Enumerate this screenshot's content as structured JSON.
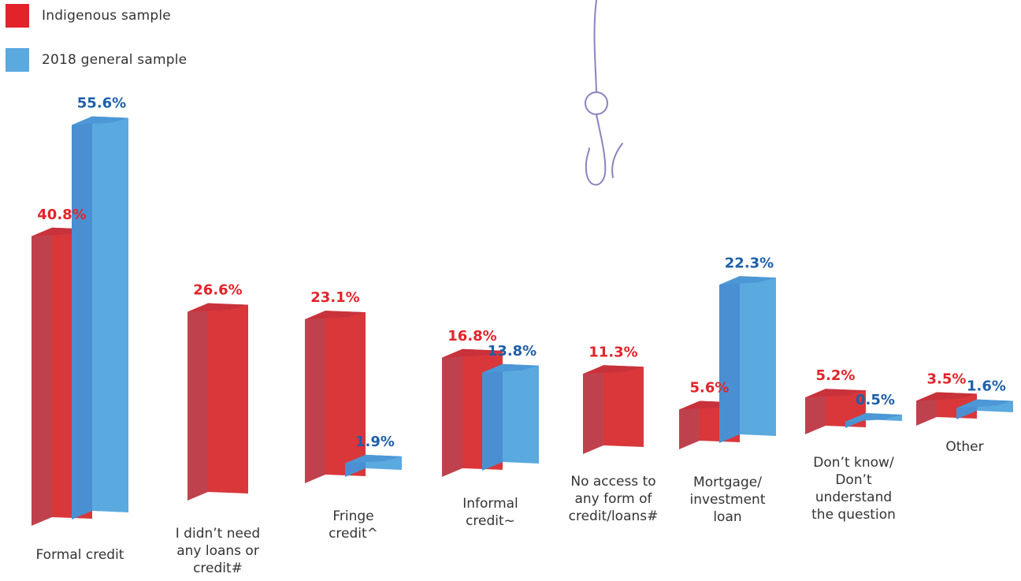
{
  "chart_data": {
    "type": "bar",
    "title": "",
    "xlabel": "",
    "ylabel": "",
    "ylim": [
      0,
      60
    ],
    "categories": [
      "Formal credit",
      "I didn’t need\nany loans or\ncredit#",
      "Fringe\ncredit^",
      "Informal\ncredit~",
      "No access to\nany form of\ncredit/loans#",
      "Mortgage/\ninvestment\nloan",
      "Don’t know/\nDon’t\nunderstand\nthe question",
      "Other"
    ],
    "series": [
      {
        "name": "Indigenous sample",
        "color": "#d9373a",
        "values": [
          40.8,
          26.6,
          23.1,
          16.8,
          11.3,
          5.6,
          5.2,
          3.5
        ],
        "labels": [
          "40.8%",
          "26.6%",
          "23.1%",
          "16.8%",
          "11.3%",
          "5.6%",
          "5.2%",
          "3.5%"
        ]
      },
      {
        "name": "2018 general sample",
        "color": "#5aa9df",
        "values": [
          55.6,
          null,
          1.9,
          13.8,
          null,
          22.3,
          0.5,
          1.6
        ],
        "labels": [
          "55.6%",
          "",
          "1.9%",
          "13.8%",
          "",
          "22.3%",
          "0.5%",
          "1.6%"
        ]
      }
    ],
    "legend_position": "top-left",
    "grid": false
  },
  "legend": [
    {
      "label": "Indigenous sample",
      "color": "#e2242a"
    },
    {
      "label": "2018 general sample",
      "color": "#5aa9df"
    }
  ],
  "colors": {
    "red_label": "#e2242a",
    "blue_label": "#1f5fa8",
    "hook": "#8a84c0"
  },
  "decoration": {
    "icon": "fish-hook-icon"
  }
}
